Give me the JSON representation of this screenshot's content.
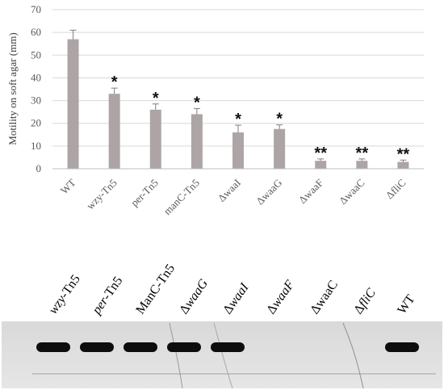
{
  "chart_data": {
    "type": "bar",
    "ylabel": "Motility  on soft  agar  (mm)",
    "ylim": [
      0,
      70
    ],
    "yticks": [
      0,
      10,
      20,
      30,
      40,
      50,
      60,
      70
    ],
    "grid": true,
    "categories": [
      "WT",
      "wzy-Tn5",
      "per-Tn5",
      "manC-Tn5",
      "ΔwaaI",
      "ΔwaaG",
      "ΔwaaF",
      "ΔwaaC",
      "ΔfliC"
    ],
    "values": [
      57,
      33,
      26,
      24,
      16,
      17.5,
      3.5,
      3.5,
      3
    ],
    "errors": [
      4,
      2.5,
      2.5,
      2.5,
      3.2,
      1.8,
      0.8,
      0.8,
      0.8
    ],
    "significance": [
      "",
      "*",
      "*",
      "*",
      "*",
      "*",
      "**",
      "**",
      "**"
    ],
    "bar_color": "#ada5a5"
  },
  "blot": {
    "lanes": [
      {
        "prefix": "",
        "italic": "wzy",
        "suffix": "-Tn5",
        "band": true
      },
      {
        "prefix": "",
        "italic": "per",
        "suffix": "-Tn5",
        "band": true
      },
      {
        "prefix": "ManC-Tn5",
        "italic": "",
        "suffix": "",
        "band": true
      },
      {
        "prefix": "Δ",
        "italic": "waaG",
        "suffix": "",
        "band": true
      },
      {
        "prefix": "Δ",
        "italic": "waaI",
        "suffix": "",
        "band": true
      },
      {
        "prefix": "Δ",
        "italic": "waaF",
        "suffix": "",
        "band": false
      },
      {
        "prefix": "ΔwaaC",
        "italic": "",
        "suffix": "",
        "band": false
      },
      {
        "prefix": "Δ",
        "italic": "fliC",
        "suffix": "",
        "band": false
      },
      {
        "prefix": "WT",
        "italic": "",
        "suffix": "",
        "band": true
      }
    ]
  }
}
